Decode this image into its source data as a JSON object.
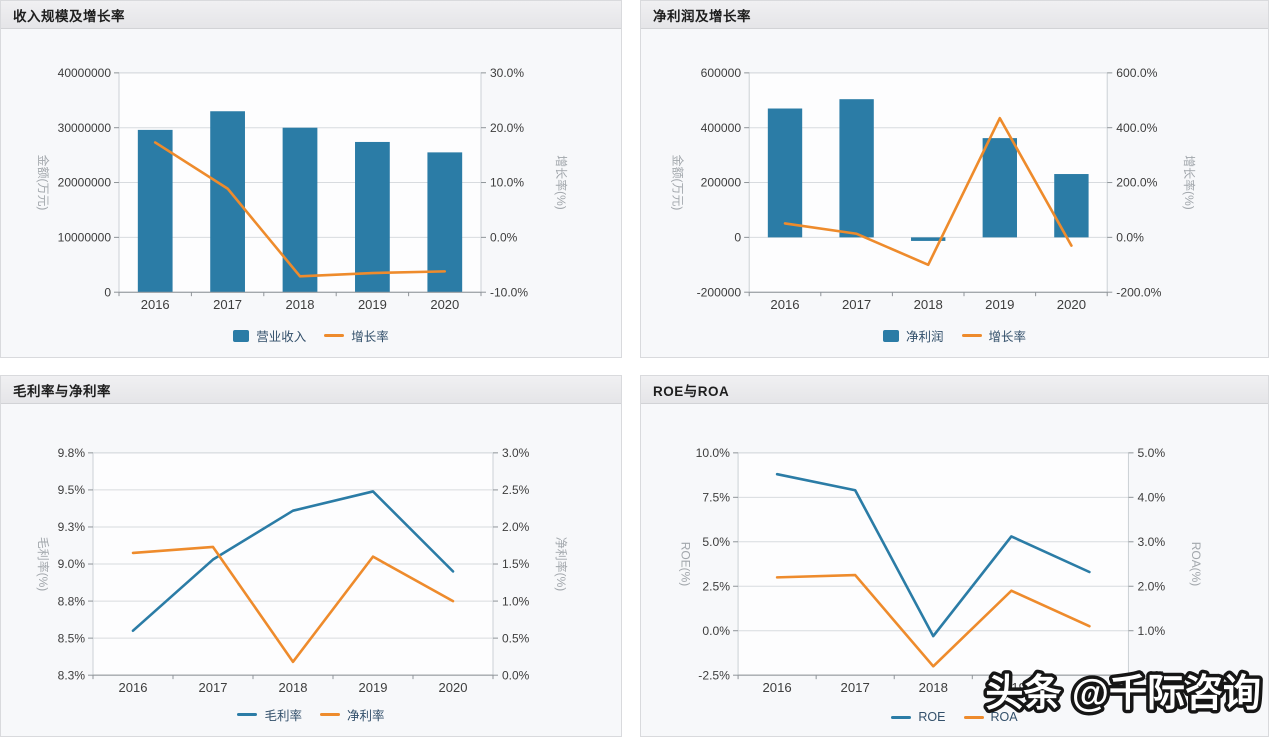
{
  "colors": {
    "series_palette": [
      "#2b7ca6",
      "#ee8b2c"
    ],
    "grid_line": "#d8dbdf",
    "plot_background": "#fdfdfe",
    "plot_border": "#ccd1d5",
    "axis_line": "#8f9499",
    "tick_text": "#3d3d3d",
    "axis_name_text": "#a2a7ac",
    "legend_text": "#33506b",
    "panel_header_background": "#eaeaec",
    "panel_body_background": "#f7f8fa"
  },
  "watermark": {
    "text": "头条 @千际咨询"
  },
  "chart_data": [
    {
      "type": "bar+line",
      "title": "收入规模及增长率",
      "categories": [
        "2016",
        "2017",
        "2018",
        "2019",
        "2020"
      ],
      "series": [
        {
          "name": "营业收入",
          "kind": "bar",
          "axis": "left",
          "values": [
            29600000,
            33000000,
            30000000,
            27400000,
            25500000
          ]
        },
        {
          "name": "增长率",
          "kind": "line",
          "axis": "right",
          "values": [
            17.3,
            8.9,
            -7.1,
            -6.5,
            -6.2
          ]
        }
      ],
      "left_axis": {
        "name": "金额(万元)",
        "min": 0,
        "max": 40000000,
        "tick_values": [
          0,
          10000000,
          20000000,
          30000000,
          40000000
        ],
        "tick_labels": [
          "0",
          "10000000",
          "20000000",
          "30000000",
          "40000000"
        ]
      },
      "right_axis": {
        "name": "增长率(%)",
        "min": -10,
        "max": 30,
        "tick_values": [
          -10,
          0,
          10,
          20,
          30
        ],
        "tick_labels": [
          "-10.0%",
          "0.0%",
          "10.0%",
          "20.0%",
          "30.0%"
        ]
      },
      "legend": [
        "营业收入",
        "增长率"
      ],
      "legend_position": "bottom-center",
      "grid": true
    },
    {
      "type": "bar+line",
      "title": "净利润及增长率",
      "categories": [
        "2016",
        "2017",
        "2018",
        "2019",
        "2020"
      ],
      "series": [
        {
          "name": "净利润",
          "kind": "bar",
          "axis": "left",
          "values": [
            470000,
            504000,
            -13000,
            362000,
            231000
          ]
        },
        {
          "name": "增长率",
          "kind": "line",
          "axis": "right",
          "values": [
            51,
            13,
            -100,
            435,
            -30
          ]
        }
      ],
      "left_axis": {
        "name": "金额(万元)",
        "min": -200000,
        "max": 600000,
        "tick_values": [
          -200000,
          0,
          200000,
          400000,
          600000
        ],
        "tick_labels": [
          "-200000",
          "0",
          "200000",
          "400000",
          "600000"
        ]
      },
      "right_axis": {
        "name": "增长率(%)",
        "min": -200,
        "max": 600,
        "tick_values": [
          -200,
          0,
          200,
          400,
          600
        ],
        "tick_labels": [
          "-200.0%",
          "0.0%",
          "200.0%",
          "400.0%",
          "600.0%"
        ]
      },
      "legend": [
        "净利润",
        "增长率"
      ],
      "legend_position": "bottom-center",
      "grid": true
    },
    {
      "type": "line",
      "title": "毛利率与净利率",
      "categories": [
        "2016",
        "2017",
        "2018",
        "2019",
        "2020"
      ],
      "series": [
        {
          "name": "毛利率",
          "kind": "line",
          "axis": "left",
          "values": [
            8.6,
            9.08,
            9.41,
            9.54,
            9.0
          ]
        },
        {
          "name": "净利率",
          "kind": "line",
          "axis": "right",
          "values": [
            1.65,
            1.73,
            0.18,
            1.6,
            1.0
          ]
        }
      ],
      "left_axis": {
        "name": "毛利率(%)",
        "min": 8.3,
        "max": 9.8,
        "tick_values": [
          8.3,
          8.55,
          8.8,
          9.05,
          9.3,
          9.55,
          9.8
        ],
        "tick_labels": [
          "8.3%",
          "8.5%",
          "8.8%",
          "9.0%",
          "9.3%",
          "9.5%",
          "9.8%"
        ]
      },
      "right_axis": {
        "name": "净利率(%)",
        "min": 0,
        "max": 3,
        "tick_values": [
          0,
          0.5,
          1,
          1.5,
          2,
          2.5,
          3
        ],
        "tick_labels": [
          "0.0%",
          "0.5%",
          "1.0%",
          "1.5%",
          "2.0%",
          "2.5%",
          "3.0%"
        ]
      },
      "legend": [
        "毛利率",
        "净利率"
      ],
      "legend_position": "bottom-center",
      "grid": true
    },
    {
      "type": "line",
      "title": "ROE与ROA",
      "categories": [
        "2016",
        "2017",
        "2018",
        "2019",
        "2020"
      ],
      "series": [
        {
          "name": "ROE",
          "kind": "line",
          "axis": "left",
          "values": [
            8.8,
            7.9,
            -0.3,
            5.3,
            3.3
          ]
        },
        {
          "name": "ROA",
          "kind": "line",
          "axis": "right",
          "values": [
            2.2,
            2.25,
            0.2,
            1.9,
            1.1
          ]
        }
      ],
      "left_axis": {
        "name": "ROE(%)",
        "min": -2.5,
        "max": 10,
        "tick_values": [
          -2.5,
          0,
          2.5,
          5,
          7.5,
          10
        ],
        "tick_labels": [
          "-2.5%",
          "0.0%",
          "2.5%",
          "5.0%",
          "7.5%",
          "10.0%"
        ]
      },
      "right_axis": {
        "name": "ROA(%)",
        "min": 0,
        "max": 5,
        "tick_values": [
          0,
          1,
          2,
          3,
          4,
          5
        ],
        "tick_labels": [
          "0.0%",
          "1.0%",
          "2.0%",
          "3.0%",
          "4.0%",
          "5.0%"
        ]
      },
      "legend": [
        "ROE",
        "ROA"
      ],
      "legend_position": "bottom-center",
      "grid": true
    }
  ]
}
